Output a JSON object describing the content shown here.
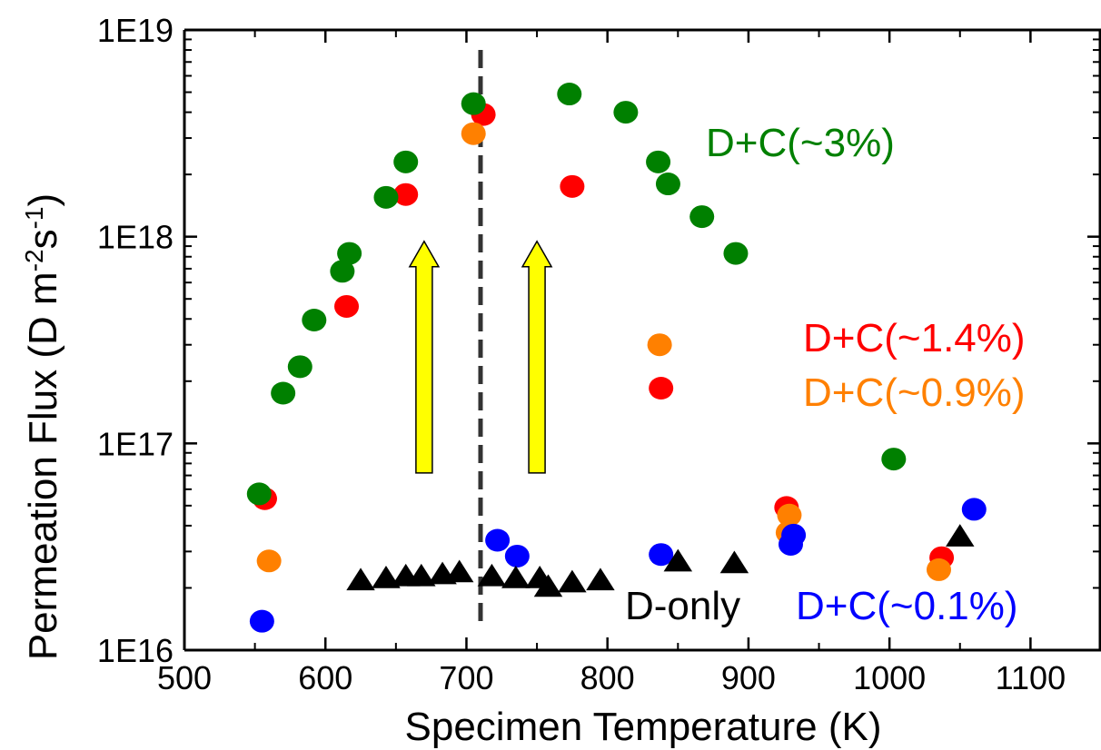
{
  "chart_data": {
    "type": "scatter",
    "xlabel": "Specimen Temperature (K)",
    "ylabel_main": "Permeation Flux (D m",
    "ylabel_sup1": "-2",
    "ylabel_mid": "s",
    "ylabel_sup2": "-1",
    "ylabel_end": ")",
    "xlim": [
      500,
      1150
    ],
    "ylim": [
      1e+16,
      1e+19
    ],
    "yscale": "log",
    "x_ticks": [
      500,
      600,
      700,
      800,
      900,
      1000,
      1100
    ],
    "x_tick_labels": [
      "500",
      "600",
      "700",
      "800",
      "900",
      "1000",
      "1100"
    ],
    "y_ticks": [
      1e+16,
      1e+17,
      1e+18,
      1e+19
    ],
    "y_tick_labels": [
      "1E16",
      "1E17",
      "1E18",
      "1E19"
    ],
    "grid": false,
    "vertical_line": {
      "x": 710,
      "style": "dashed",
      "color": "#333333"
    },
    "arrows": [
      {
        "x": 670,
        "from": 7.2e+16,
        "to": 9.5e+17,
        "color": "#ffff00"
      },
      {
        "x": 750,
        "from": 7.2e+16,
        "to": 9.5e+17,
        "color": "#ffff00"
      }
    ],
    "series": [
      {
        "name": "D+C(~1.4%)",
        "color": "#ff0000",
        "marker": "circle",
        "points": [
          [
            557,
            5.4e+16
          ],
          [
            615,
            4.6e+17
          ],
          [
            657,
            1.6e+18
          ],
          [
            712,
            3.9e+18
          ],
          [
            775,
            1.75e+18
          ],
          [
            838,
            1.85e+17
          ],
          [
            927,
            4.9e+16
          ],
          [
            1037,
            2.8e+16
          ]
        ]
      },
      {
        "name": "D+C(~0.9%)",
        "color": "#ff8000",
        "marker": "circle",
        "points": [
          [
            560,
            2.7e+16
          ],
          [
            705,
            3.15e+18
          ],
          [
            837,
            3e+17
          ],
          [
            928,
            3.7e+16
          ],
          [
            929,
            4.5e+16
          ],
          [
            1035,
            2.45e+16
          ]
        ]
      },
      {
        "name": "D+C(~3%)",
        "color": "#008000",
        "marker": "circle",
        "points": [
          [
            553,
            5.7e+16
          ],
          [
            570,
            1.75e+17
          ],
          [
            582,
            2.35e+17
          ],
          [
            592,
            3.95e+17
          ],
          [
            612,
            6.8e+17
          ],
          [
            617,
            8.3e+17
          ],
          [
            643,
            1.55e+18
          ],
          [
            657,
            2.3e+18
          ],
          [
            705,
            4.4e+18
          ],
          [
            773,
            4.9e+18
          ],
          [
            813,
            4e+18
          ],
          [
            836,
            2.3e+18
          ],
          [
            843,
            1.8e+18
          ],
          [
            867,
            1.25e+18
          ],
          [
            891,
            8.3e+17
          ],
          [
            1003,
            8.4e+16
          ]
        ]
      },
      {
        "name": "D+C(~0.1%)",
        "color": "#0000ff",
        "marker": "circle",
        "points": [
          [
            555,
            1.38e+16
          ],
          [
            722,
            3.4e+16
          ],
          [
            736,
            2.85e+16
          ],
          [
            838,
            2.9e+16
          ],
          [
            930,
            3.25e+16
          ],
          [
            932,
            3.6e+16
          ],
          [
            1060,
            4.8e+16
          ]
        ]
      },
      {
        "name": "D-only",
        "color": "#000000",
        "marker": "triangle",
        "points": [
          [
            625,
            2.15e+16
          ],
          [
            643,
            2.2e+16
          ],
          [
            657,
            2.25e+16
          ],
          [
            668,
            2.25e+16
          ],
          [
            683,
            2.3e+16
          ],
          [
            695,
            2.35e+16
          ],
          [
            718,
            2.25e+16
          ],
          [
            735,
            2.2e+16
          ],
          [
            752,
            2.2e+16
          ],
          [
            758,
            2e+16
          ],
          [
            775,
            2.1e+16
          ],
          [
            795,
            2.15e+16
          ],
          [
            850,
            2.65e+16
          ],
          [
            890,
            2.6e+16
          ],
          [
            1050,
            3.5e+16
          ]
        ]
      }
    ],
    "annotations": [
      {
        "text": "D+C(~3%)",
        "color": "#008000"
      },
      {
        "text": "D+C(~1.4%)",
        "color": "#ff0000"
      },
      {
        "text": "D+C(~0.9%)",
        "color": "#ff8000"
      },
      {
        "text": "D-only",
        "color": "#000000"
      },
      {
        "text": "D+C(~0.1%)",
        "color": "#0000ff"
      }
    ]
  }
}
